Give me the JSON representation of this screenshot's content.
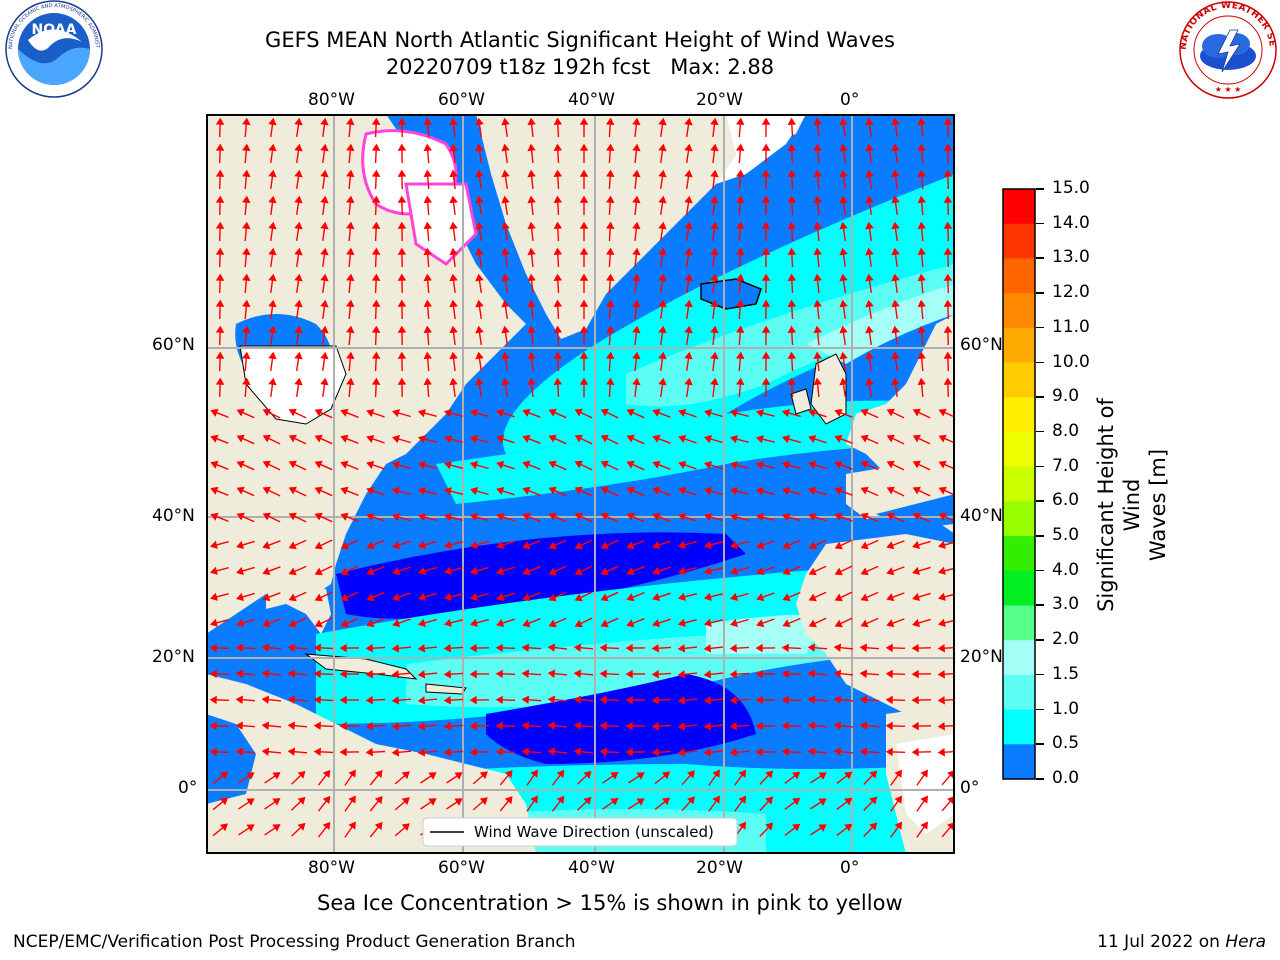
{
  "header": {
    "title": "GEFS MEAN North Atlantic Significant Height of Wind Waves",
    "subtitle": "20220709 t18z 192h fcst   Max: 2.88"
  },
  "logos": {
    "left": {
      "name": "noaa-logo",
      "text": "NOAA",
      "ring_text": "NATIONAL OCEANIC AND ATMOSPHERIC ADMINISTRATION · U.S. DEPARTMENT OF COMMERCE"
    },
    "right": {
      "name": "nws-logo",
      "ring_text": "NATIONAL WEATHER SERVICE"
    }
  },
  "map": {
    "lon_labels": [
      "80°W",
      "60°W",
      "40°W",
      "20°W",
      "0°"
    ],
    "lat_labels": [
      "60°N",
      "40°N",
      "20°N",
      "0°"
    ],
    "legend_label": "Wind Wave Direction (unscaled)",
    "colors": {
      "land": "#efecdc",
      "ice": "#ffffff",
      "ocean_0": "#0000ff",
      "ocean_05": "#0a7cff",
      "ocean_1": "#00ffff",
      "ocean_15": "#5cfef4",
      "ocean_2": "#a6fff6",
      "arrow": "#ff0000",
      "grid": "#b0b0b0"
    }
  },
  "colorbar": {
    "label_line1": "Significant Height of Wind",
    "label_line2": "Waves [m]",
    "ticks": [
      "15.0",
      "14.0",
      "13.0",
      "12.0",
      "11.0",
      "10.0",
      "9.0",
      "8.0",
      "7.0",
      "6.0",
      "5.0",
      "4.0",
      "3.0",
      "2.0",
      "1.5",
      "1.0",
      "0.5",
      "0.0"
    ],
    "colors": [
      "#ff0000",
      "#ff3300",
      "#ff6600",
      "#ff8800",
      "#ffaa00",
      "#ffcc00",
      "#ffee00",
      "#eeff00",
      "#ccff00",
      "#99ff00",
      "#33ee00",
      "#00ee22",
      "#55ff88",
      "#a6fff6",
      "#5cfef4",
      "#00ffff",
      "#0a7cff",
      "#0000ff"
    ]
  },
  "notes": {
    "sea_ice": "Sea Ice Concentration > 15% is shown in pink to yellow"
  },
  "footer": {
    "left": "NCEP/EMC/Verification Post Processing Product Generation Branch",
    "right_prefix": "11 Jul 2022 on ",
    "right_host": "Hera"
  }
}
